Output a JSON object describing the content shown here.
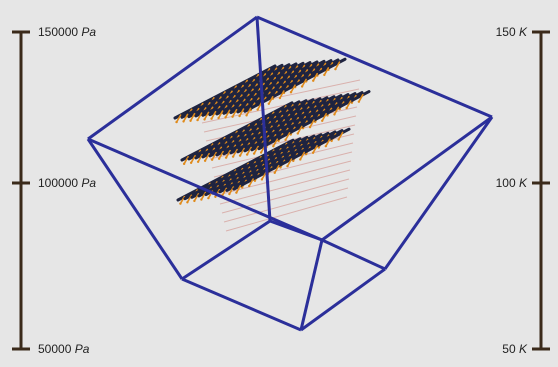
{
  "colors": {
    "background": "#e6e6e6",
    "box_edges": "#2b2f9a",
    "scale_bar": "#3a2a1a",
    "lattice_bars": "#1f2440",
    "lattice_links": "#e08a1a",
    "lattice_faint_links": "#d7a5a0"
  },
  "left_scale": {
    "top_label": "150000",
    "mid_label": "100000",
    "bottom_label": "50000",
    "unit": "Pa"
  },
  "right_scale": {
    "top_label": "150",
    "mid_label": "100",
    "bottom_label": "50",
    "unit": "K"
  },
  "icons": {
    "box": "wireframe-bounding-box",
    "lattice": "molecular-lattice"
  }
}
